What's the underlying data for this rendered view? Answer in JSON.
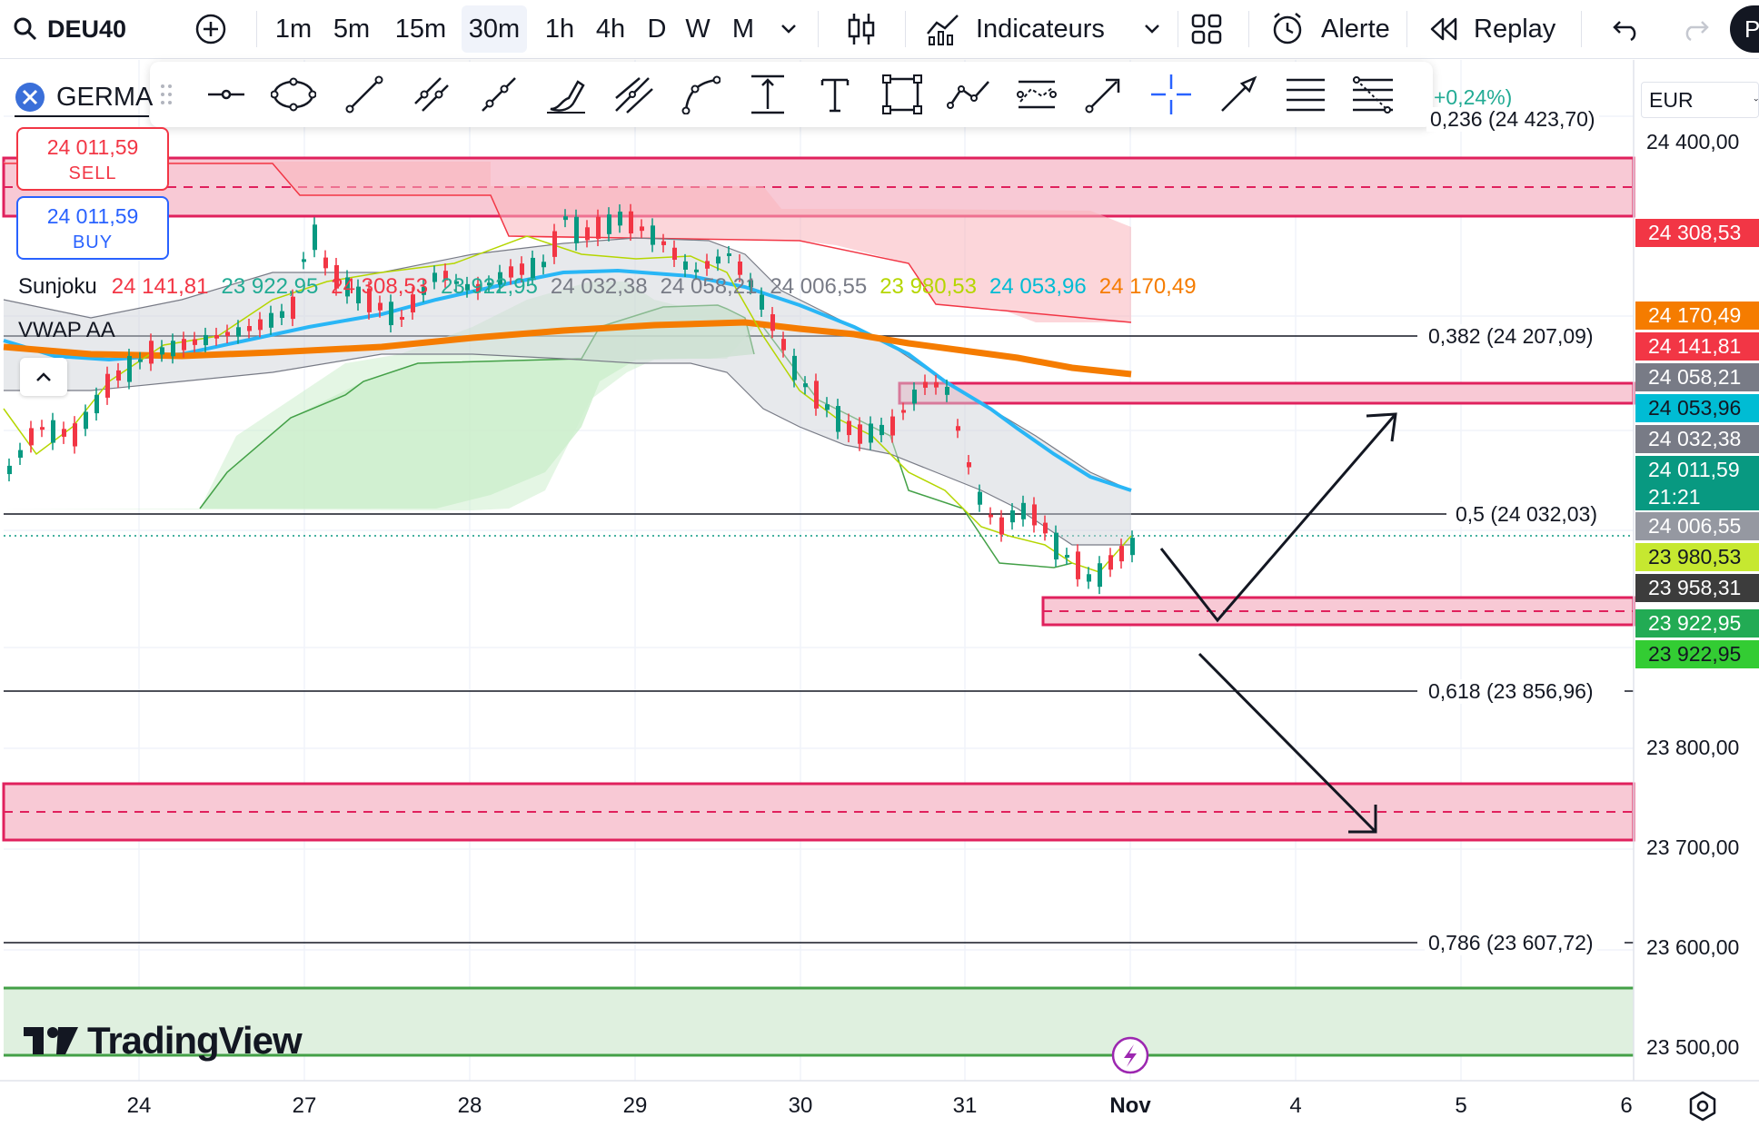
{
  "toolbar": {
    "symbol": "DEU40",
    "intervals": [
      "1m",
      "5m",
      "15m",
      "30m",
      "1h",
      "4h",
      "D",
      "W",
      "M"
    ],
    "selected_interval": "30m",
    "indicators_label": "Indicateurs",
    "alert_label": "Alerte",
    "replay_label": "Replay",
    "right_edge_label": "P"
  },
  "legend": {
    "symbol_name": "GERMA",
    "change_pct": "+0,24%)",
    "sell_price": "24 011,59",
    "sell_label": "SELL",
    "buy_price": "24 011,59",
    "buy_label": "BUY",
    "sunjoku_label": "Sunjoku",
    "sunjoku_values": [
      {
        "value": "24 141,81",
        "color": "#f23645"
      },
      {
        "value": "23 922,95",
        "color": "#22ab94"
      },
      {
        "value": "24 308,53",
        "color": "#f23645"
      },
      {
        "value": "23 922,95",
        "color": "#22ab94"
      },
      {
        "value": "24 032,38",
        "color": "#787b86"
      },
      {
        "value": "24 058,21",
        "color": "#787b86"
      },
      {
        "value": "24 006,55",
        "color": "#787b86"
      },
      {
        "value": "23 980,53",
        "color": "#b5d600"
      },
      {
        "value": "24 053,96",
        "color": "#00bcd4"
      },
      {
        "value": "24 170,49",
        "color": "#f57c00"
      }
    ],
    "vwap_label": "VWAP AA"
  },
  "currency": "EUR",
  "price_axis": {
    "ticks": [
      "24 400,00",
      "23 800,00",
      "23 700,00",
      "23 600,00",
      "23 500,00"
    ],
    "labels": [
      {
        "value": "24 308,53",
        "color": "#f23645",
        "text_color": "#ffffff"
      },
      {
        "value": "24 170,49",
        "color": "#f57c00",
        "text_color": "#ffffff"
      },
      {
        "value": "24 141,81",
        "color": "#f23645",
        "text_color": "#ffffff"
      },
      {
        "value": "24 058,21",
        "color": "#787b86",
        "text_color": "#ffffff"
      },
      {
        "value": "24 053,96",
        "color": "#00bcd4",
        "text_color": "#131722"
      },
      {
        "value": "24 032,38",
        "color": "#787b86",
        "text_color": "#ffffff"
      },
      {
        "value": "24 011,59",
        "color": "#089981",
        "text_color": "#ffffff"
      },
      {
        "value": "21:21",
        "color": "#089981",
        "text_color": "#ffffff"
      },
      {
        "value": "24 006,55",
        "color": "#9598a1",
        "text_color": "#ffffff"
      },
      {
        "value": "23 980,53",
        "color": "#c6e830",
        "text_color": "#131722"
      },
      {
        "value": "23 958,31",
        "color": "#3c3c3c",
        "text_color": "#ffffff"
      },
      {
        "value": "23 922,95",
        "color": "#22ab54",
        "text_color": "#ffffff"
      },
      {
        "value": "23 922,95",
        "color": "#33cc33",
        "text_color": "#131722"
      }
    ]
  },
  "fib_levels": [
    {
      "label": "0,236 (24 423,70)"
    },
    {
      "label": "0,382 (24 207,09)"
    },
    {
      "label": "0,5 (24 032,03)"
    },
    {
      "label": "0,618 (23 856,96)"
    },
    {
      "label": "0,786 (23 607,72)"
    }
  ],
  "time_axis": [
    "24",
    "27",
    "28",
    "29",
    "30",
    "31",
    "Nov",
    "4",
    "5",
    "6"
  ],
  "watermark": "TradingView",
  "colors": {
    "supply_zone": "#f7c6d3",
    "zone_border": "#e91e63",
    "demand_zone": "#dff0df",
    "demand_border": "#43a047",
    "bull": "#089981",
    "bear": "#f23645",
    "vwap": "#f57c00",
    "ema": "#29b6f6"
  }
}
